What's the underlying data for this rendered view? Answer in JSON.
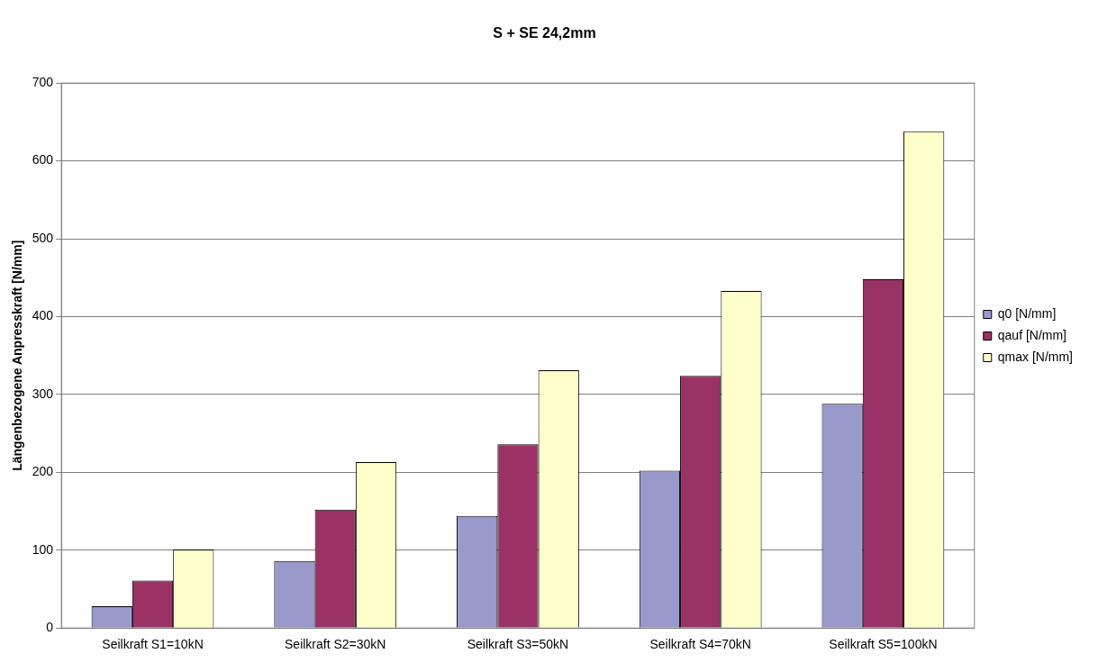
{
  "chart_data": {
    "type": "bar",
    "title": "S + SE 24,2mm",
    "ylabel": "Längenbezogene Anpresskraft [N/mm]",
    "categories": [
      "Seilkraft S1=10kN",
      "Seilkraft S2=30kN",
      "Seilkraft S3=50kN",
      "Seilkraft S4=70kN",
      "Seilkraft S5=100kN"
    ],
    "series": [
      {
        "name": "q0 [N/mm]",
        "color": "#9999cc",
        "values": [
          28,
          86,
          144,
          202,
          288
        ]
      },
      {
        "name": "qauf [N/mm]",
        "color": "#993366",
        "values": [
          61,
          152,
          236,
          324,
          448
        ]
      },
      {
        "name": "qmax [N/mm]",
        "color": "#ffffcc",
        "values": [
          101,
          213,
          331,
          433,
          638
        ]
      }
    ],
    "ylim": [
      0,
      700
    ],
    "yticks": [
      0,
      100,
      200,
      300,
      400,
      500,
      600,
      700
    ],
    "grid": "y",
    "legend": "right"
  }
}
